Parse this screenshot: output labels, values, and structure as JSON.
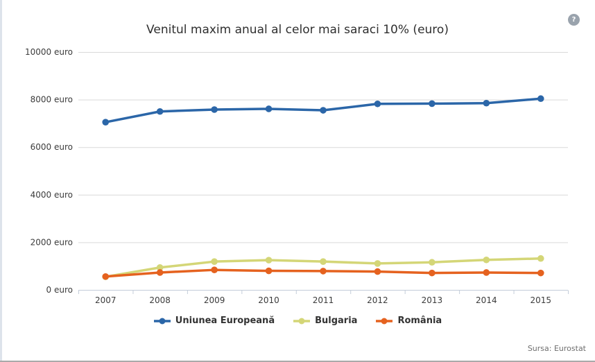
{
  "page": {
    "background": "#ffffff",
    "left_strip_color": "#dde3eb",
    "bottom_border_color": "#a9a9a9"
  },
  "help": {
    "icon": "question-mark-icon",
    "label": "?"
  },
  "chart_data": {
    "type": "line",
    "title": "Venitul maxim anual al celor mai saraci 10% (euro)",
    "categories": [
      "2007",
      "2008",
      "2009",
      "2010",
      "2011",
      "2012",
      "2013",
      "2014",
      "2015"
    ],
    "series": [
      {
        "name": "Uniunea Europeană",
        "color": "#2b66a8",
        "values": [
          7050,
          7500,
          7580,
          7610,
          7550,
          7820,
          7830,
          7850,
          8040
        ]
      },
      {
        "name": "Bulgaria",
        "color": "#d4d677",
        "values": [
          550,
          940,
          1190,
          1250,
          1190,
          1110,
          1160,
          1260,
          1320
        ]
      },
      {
        "name": "România",
        "color": "#e5621f",
        "values": [
          560,
          730,
          840,
          800,
          790,
          770,
          710,
          730,
          710
        ]
      }
    ],
    "ylim": [
      0,
      10000
    ],
    "ytick_interval": 2000,
    "yticks": [
      "0 euro",
      "2000 euro",
      "4000 euro",
      "6000 euro",
      "8000 euro",
      "10000 euro"
    ],
    "grid": true,
    "legend_position": "bottom",
    "gridline_color": "#d9d9d9",
    "axis_color": "#c3ccd9",
    "label_color": "#3b3b3b"
  },
  "source": {
    "text": "Sursa: Eurostat"
  }
}
